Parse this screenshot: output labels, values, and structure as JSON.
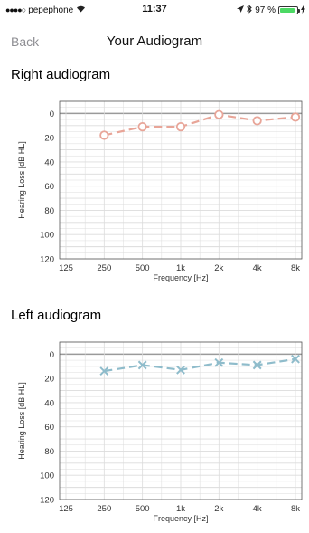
{
  "status_bar": {
    "carrier": "pepephone",
    "time": "11:37",
    "battery": "97 %"
  },
  "nav": {
    "back_label": "Back",
    "title": "Your Audiogram"
  },
  "sections": {
    "right_title": "Right audiogram",
    "left_title": "Left audiogram"
  },
  "colors": {
    "right_series": "#e8a598",
    "left_series": "#8fbccb",
    "grid": "#dcdcdc",
    "zero_line": "#9a9a9a"
  },
  "chart_data": [
    {
      "type": "line",
      "x": [
        "125",
        "250",
        "500",
        "1k",
        "2k",
        "4k",
        "8k"
      ],
      "xlabel": "Frequency [Hz]",
      "ylabel": "Hearing Loss [dB HL]",
      "y_ticks": [
        0,
        20,
        40,
        60,
        80,
        100,
        120
      ],
      "ylim": [
        -10,
        120
      ],
      "y_inverted": true,
      "grid": true,
      "marker": "circle",
      "series": [
        {
          "values": [
            null,
            18,
            11,
            11,
            1,
            6,
            3
          ]
        }
      ]
    },
    {
      "type": "line",
      "x": [
        "125",
        "250",
        "500",
        "1k",
        "2k",
        "4k",
        "8k"
      ],
      "xlabel": "Frequency [Hz]",
      "ylabel": "Hearing Loss [dB HL]",
      "y_ticks": [
        0,
        20,
        40,
        60,
        80,
        100,
        120
      ],
      "ylim": [
        -10,
        120
      ],
      "y_inverted": true,
      "grid": true,
      "marker": "x",
      "series": [
        {
          "values": [
            null,
            14,
            9,
            13,
            7,
            9,
            4
          ]
        }
      ]
    }
  ]
}
